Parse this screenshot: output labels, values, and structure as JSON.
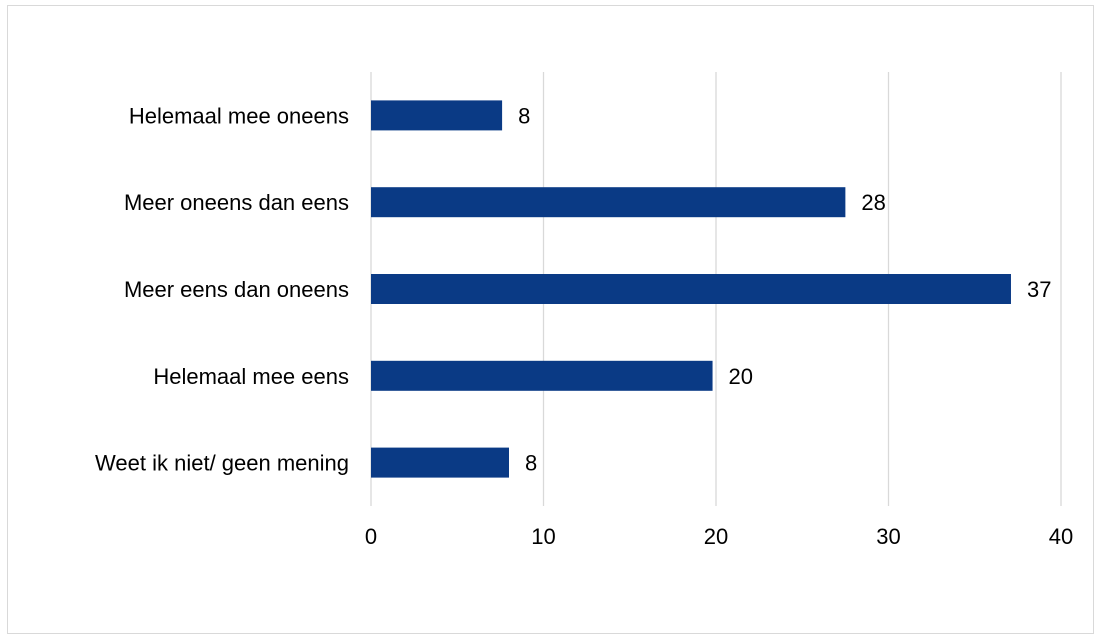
{
  "chart_data": {
    "type": "bar",
    "orientation": "horizontal",
    "categories": [
      "Helemaal mee oneens",
      "Meer oneens dan eens",
      "Meer eens dan oneens",
      "Helemaal mee eens",
      "Weet ik niet/ geen mening"
    ],
    "values": [
      8,
      28,
      37,
      20,
      8
    ],
    "bar_lengths": [
      7.6,
      27.5,
      37.1,
      19.8,
      8.0
    ],
    "xlim": [
      0,
      40
    ],
    "xticks": [
      "0",
      "10",
      "20",
      "30",
      "40"
    ],
    "grid": true,
    "legend": "none",
    "bar_color": "#0a3a85",
    "grid_color": "#d9d9d9"
  }
}
